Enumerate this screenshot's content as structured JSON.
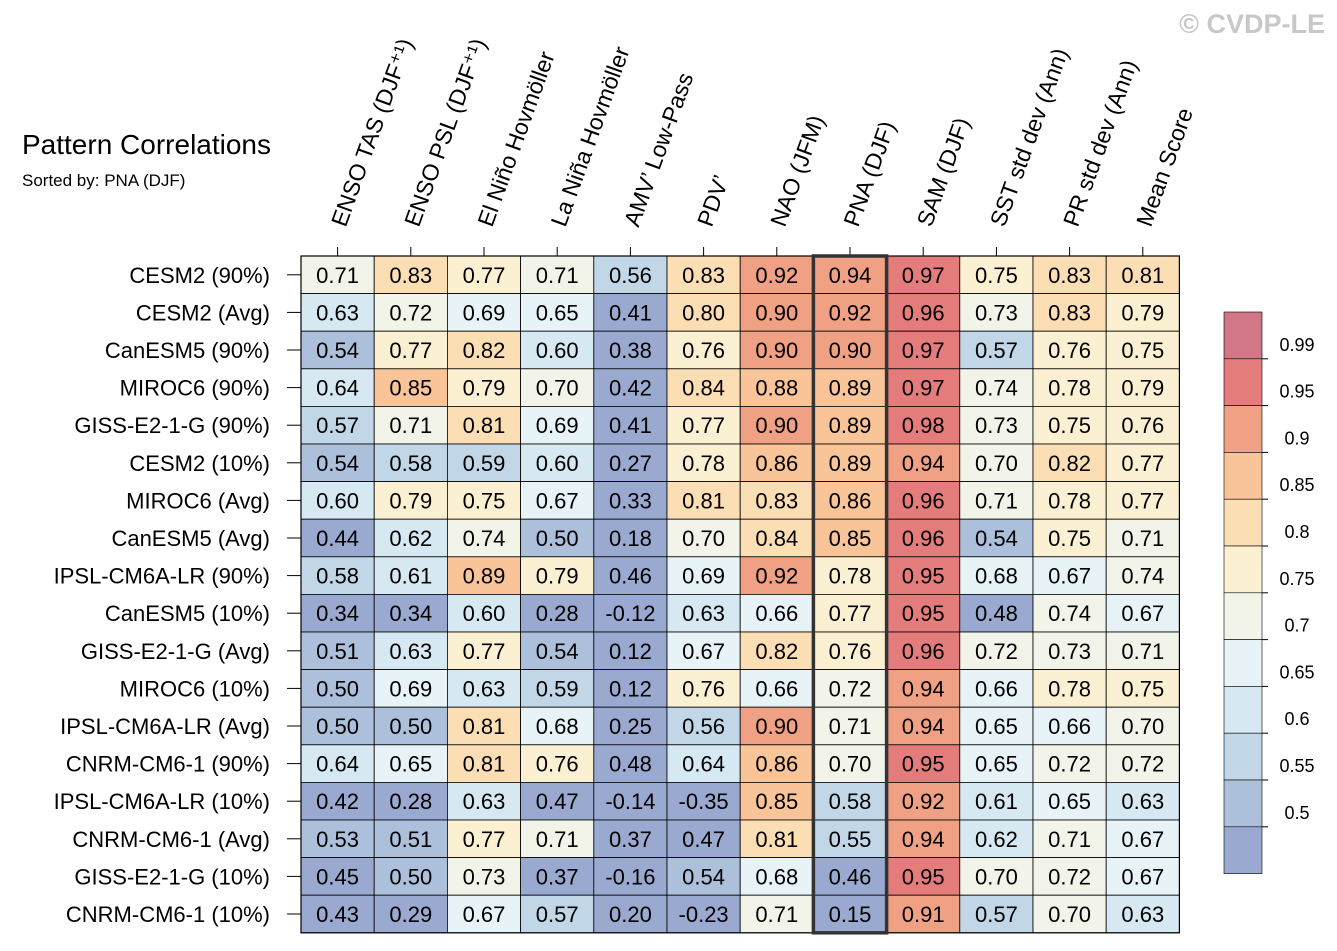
{
  "chart_data": {
    "type": "heatmap",
    "title": "Pattern Correlations",
    "subtitle": "Sorted by: PNA (DJF)",
    "watermark": "© CVDP-LE",
    "highlight_column": "PNA (DJF)",
    "columns": [
      "ENSO TAS (DJF⁺¹)",
      "ENSO PSL (DJF⁺¹)",
      "El Niño Hovmöller",
      "La Niña Hovmöller",
      "AMV’ Low-Pass",
      "PDV’",
      "NAO (JFM)",
      "PNA (DJF)",
      "SAM (DJF)",
      "SST std dev (Ann)",
      "PR std dev (Ann)",
      "Mean Score"
    ],
    "rows": [
      "CESM2 (90%)",
      "CESM2 (Avg)",
      "CanESM5 (90%)",
      "MIROC6 (90%)",
      "GISS-E2-1-G (90%)",
      "CESM2 (10%)",
      "MIROC6 (Avg)",
      "CanESM5 (Avg)",
      "IPSL-CM6A-LR (90%)",
      "CanESM5 (10%)",
      "GISS-E2-1-G (Avg)",
      "MIROC6 (10%)",
      "IPSL-CM6A-LR (Avg)",
      "CNRM-CM6-1 (90%)",
      "IPSL-CM6A-LR (10%)",
      "CNRM-CM6-1 (Avg)",
      "GISS-E2-1-G (10%)",
      "CNRM-CM6-1 (10%)"
    ],
    "values": [
      [
        "0.71",
        "0.83",
        "0.77",
        "0.71",
        "0.56",
        "0.83",
        "0.92",
        "0.94",
        "0.97",
        "0.75",
        "0.83",
        "0.81"
      ],
      [
        "0.63",
        "0.72",
        "0.69",
        "0.65",
        "0.41",
        "0.80",
        "0.90",
        "0.92",
        "0.96",
        "0.73",
        "0.83",
        "0.79"
      ],
      [
        "0.54",
        "0.77",
        "0.82",
        "0.60",
        "0.38",
        "0.76",
        "0.90",
        "0.90",
        "0.97",
        "0.57",
        "0.76",
        "0.75"
      ],
      [
        "0.64",
        "0.85",
        "0.79",
        "0.70",
        "0.42",
        "0.84",
        "0.88",
        "0.89",
        "0.97",
        "0.74",
        "0.78",
        "0.79"
      ],
      [
        "0.57",
        "0.71",
        "0.81",
        "0.69",
        "0.41",
        "0.77",
        "0.90",
        "0.89",
        "0.98",
        "0.73",
        "0.75",
        "0.76"
      ],
      [
        "0.54",
        "0.58",
        "0.59",
        "0.60",
        "0.27",
        "0.78",
        "0.86",
        "0.89",
        "0.94",
        "0.70",
        "0.82",
        "0.77"
      ],
      [
        "0.60",
        "0.79",
        "0.75",
        "0.67",
        "0.33",
        "0.81",
        "0.83",
        "0.86",
        "0.96",
        "0.71",
        "0.78",
        "0.77"
      ],
      [
        "0.44",
        "0.62",
        "0.74",
        "0.50",
        "0.18",
        "0.70",
        "0.84",
        "0.85",
        "0.96",
        "0.54",
        "0.75",
        "0.71"
      ],
      [
        "0.58",
        "0.61",
        "0.89",
        "0.79",
        "0.46",
        "0.69",
        "0.92",
        "0.78",
        "0.95",
        "0.68",
        "0.67",
        "0.74"
      ],
      [
        "0.34",
        "0.34",
        "0.60",
        "0.28",
        "-0.12",
        "0.63",
        "0.66",
        "0.77",
        "0.95",
        "0.48",
        "0.74",
        "0.67"
      ],
      [
        "0.51",
        "0.63",
        "0.77",
        "0.54",
        "0.12",
        "0.67",
        "0.82",
        "0.76",
        "0.96",
        "0.72",
        "0.73",
        "0.71"
      ],
      [
        "0.50",
        "0.69",
        "0.63",
        "0.59",
        "0.12",
        "0.76",
        "0.66",
        "0.72",
        "0.94",
        "0.66",
        "0.78",
        "0.75"
      ],
      [
        "0.50",
        "0.50",
        "0.81",
        "0.68",
        "0.25",
        "0.56",
        "0.90",
        "0.71",
        "0.94",
        "0.65",
        "0.66",
        "0.70"
      ],
      [
        "0.64",
        "0.65",
        "0.81",
        "0.76",
        "0.48",
        "0.64",
        "0.86",
        "0.70",
        "0.95",
        "0.65",
        "0.72",
        "0.72"
      ],
      [
        "0.42",
        "0.28",
        "0.63",
        "0.47",
        "-0.14",
        "-0.35",
        "0.85",
        "0.58",
        "0.92",
        "0.61",
        "0.65",
        "0.63"
      ],
      [
        "0.53",
        "0.51",
        "0.77",
        "0.71",
        "0.37",
        "0.47",
        "0.81",
        "0.55",
        "0.94",
        "0.62",
        "0.71",
        "0.67"
      ],
      [
        "0.45",
        "0.50",
        "0.73",
        "0.37",
        "-0.16",
        "0.54",
        "0.68",
        "0.46",
        "0.95",
        "0.70",
        "0.72",
        "0.67"
      ],
      [
        "0.43",
        "0.29",
        "0.67",
        "0.57",
        "0.20",
        "-0.23",
        "0.71",
        "0.15",
        "0.91",
        "0.57",
        "0.70",
        "0.63"
      ]
    ],
    "colorbar": {
      "ticks": [
        "0.99",
        "0.95",
        "0.9",
        "0.85",
        "0.8",
        "0.75",
        "0.7",
        "0.65",
        "0.6",
        "0.55",
        "0.5"
      ],
      "levels": [
        0.5,
        0.55,
        0.6,
        0.65,
        0.7,
        0.75,
        0.8,
        0.85,
        0.9,
        0.95,
        0.99
      ],
      "colors": [
        "#9aa9cf",
        "#acc0dc",
        "#c1d7e7",
        "#d6e8f1",
        "#e8f3f7",
        "#f2f4ea",
        "#fcf0d2",
        "#fcdeb4",
        "#f9c498",
        "#f0a184",
        "#e47c7c",
        "#d17787"
      ]
    }
  }
}
